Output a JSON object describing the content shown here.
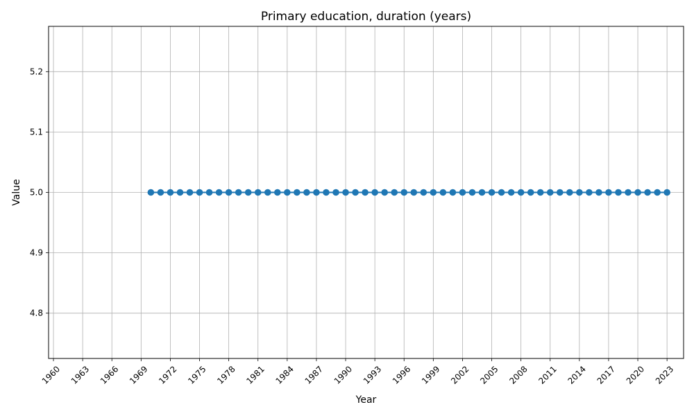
{
  "chart_data": {
    "type": "line",
    "title": "Primary education, duration (years)",
    "xlabel": "Year",
    "ylabel": "Value",
    "xlim": [
      1959.5,
      2024.7
    ],
    "ylim": [
      4.725,
      5.275
    ],
    "xticks": [
      1960,
      1963,
      1966,
      1969,
      1972,
      1975,
      1978,
      1981,
      1984,
      1987,
      1990,
      1993,
      1996,
      1999,
      2002,
      2005,
      2008,
      2011,
      2014,
      2017,
      2020,
      2023
    ],
    "yticks": [
      4.8,
      4.9,
      5.0,
      5.1,
      5.2
    ],
    "ytick_labels": [
      "4.8",
      "4.9",
      "5.0",
      "5.1",
      "5.2"
    ],
    "grid": true,
    "colors": {
      "series": "#1f77b4",
      "grid": "#b0b0b0"
    },
    "series": [
      {
        "x": [
          1970,
          1971,
          1972,
          1973,
          1974,
          1975,
          1976,
          1977,
          1978,
          1979,
          1980,
          1981,
          1982,
          1983,
          1984,
          1985,
          1986,
          1987,
          1988,
          1989,
          1990,
          1991,
          1992,
          1993,
          1994,
          1995,
          1996,
          1997,
          1998,
          1999,
          2000,
          2001,
          2002,
          2003,
          2004,
          2005,
          2006,
          2007,
          2008,
          2009,
          2010,
          2011,
          2012,
          2013,
          2014,
          2015,
          2016,
          2017,
          2018,
          2019,
          2020,
          2021,
          2022,
          2023
        ],
        "values": [
          5,
          5,
          5,
          5,
          5,
          5,
          5,
          5,
          5,
          5,
          5,
          5,
          5,
          5,
          5,
          5,
          5,
          5,
          5,
          5,
          5,
          5,
          5,
          5,
          5,
          5,
          5,
          5,
          5,
          5,
          5,
          5,
          5,
          5,
          5,
          5,
          5,
          5,
          5,
          5,
          5,
          5,
          5,
          5,
          5,
          5,
          5,
          5,
          5,
          5,
          5,
          5,
          5,
          5
        ]
      }
    ]
  }
}
